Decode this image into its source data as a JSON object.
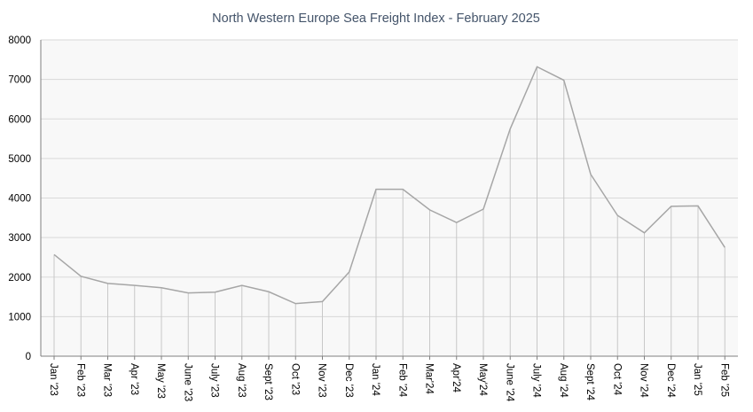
{
  "chart_data": {
    "type": "line",
    "title": "North Western Europe Sea Freight Index - February 2025",
    "xlabel": "",
    "ylabel": "",
    "ylim": [
      0,
      8000
    ],
    "yticks": [
      0,
      1000,
      2000,
      3000,
      4000,
      5000,
      6000,
      7000,
      8000
    ],
    "grid": true,
    "drop_lines": true,
    "legend": "none",
    "categories": [
      "Jan '23",
      "Feb '23",
      "Mar '23",
      "Apr '23",
      "May '23",
      "June '23",
      "July '23",
      "Aug '23",
      "Sept '23",
      "Oct '23",
      "Nov '23",
      "Dec '23",
      "Jan '24",
      "Feb '24",
      "Mar'24",
      "Apr'24",
      "May'24",
      "June '24",
      "July '24",
      "Aug '24",
      "Sept '24",
      "Oct '24",
      "Nov '24",
      "Dec '24",
      "Jan '25",
      "Feb '25"
    ],
    "values": [
      2570,
      2020,
      1840,
      1790,
      1730,
      1600,
      1620,
      1790,
      1630,
      1330,
      1380,
      2130,
      4220,
      4220,
      3700,
      3380,
      3720,
      5750,
      7320,
      6980,
      4600,
      3560,
      3120,
      3790,
      3800,
      2750
    ],
    "colors": {
      "line": "#a6a6a6",
      "grid": "#d9d9d9",
      "plot_bg": "#f8f8f8",
      "title": "#44546a"
    }
  }
}
